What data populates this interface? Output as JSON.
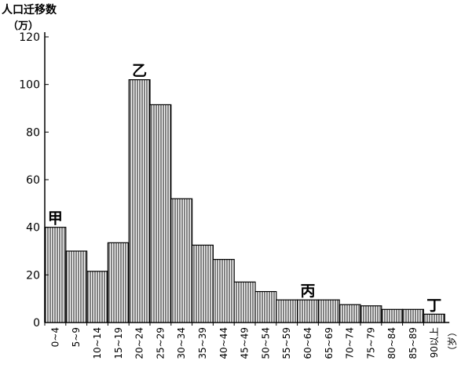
{
  "chart_data": {
    "type": "bar",
    "ylabel": "人口迁移数",
    "yunit": "（万）",
    "xunit": "（岁）",
    "ylim": [
      0,
      120
    ],
    "yticks": [
      0,
      20,
      40,
      60,
      80,
      100,
      120
    ],
    "categories": [
      "0~4",
      "5~9",
      "10~14",
      "15~19",
      "20~24",
      "25~29",
      "30~34",
      "35~39",
      "40~44",
      "45~49",
      "50~54",
      "55~59",
      "60~64",
      "65~69",
      "70~74",
      "75~79",
      "80~84",
      "85~89",
      "90以上"
    ],
    "values": [
      40,
      30,
      21.5,
      33.5,
      102,
      91.5,
      52,
      32.5,
      26.5,
      17,
      13,
      9.5,
      9.5,
      9.5,
      7.5,
      7,
      5.5,
      5.5,
      3.5
    ],
    "annotations": [
      {
        "text": "甲",
        "category": "0~4"
      },
      {
        "text": "乙",
        "category": "20~24"
      },
      {
        "text": "丙",
        "category": "60~64"
      },
      {
        "text": "丁",
        "category": "90以上"
      }
    ],
    "grid": false,
    "bar_fill": "vertical-hatch",
    "bar_color": "#000000"
  }
}
